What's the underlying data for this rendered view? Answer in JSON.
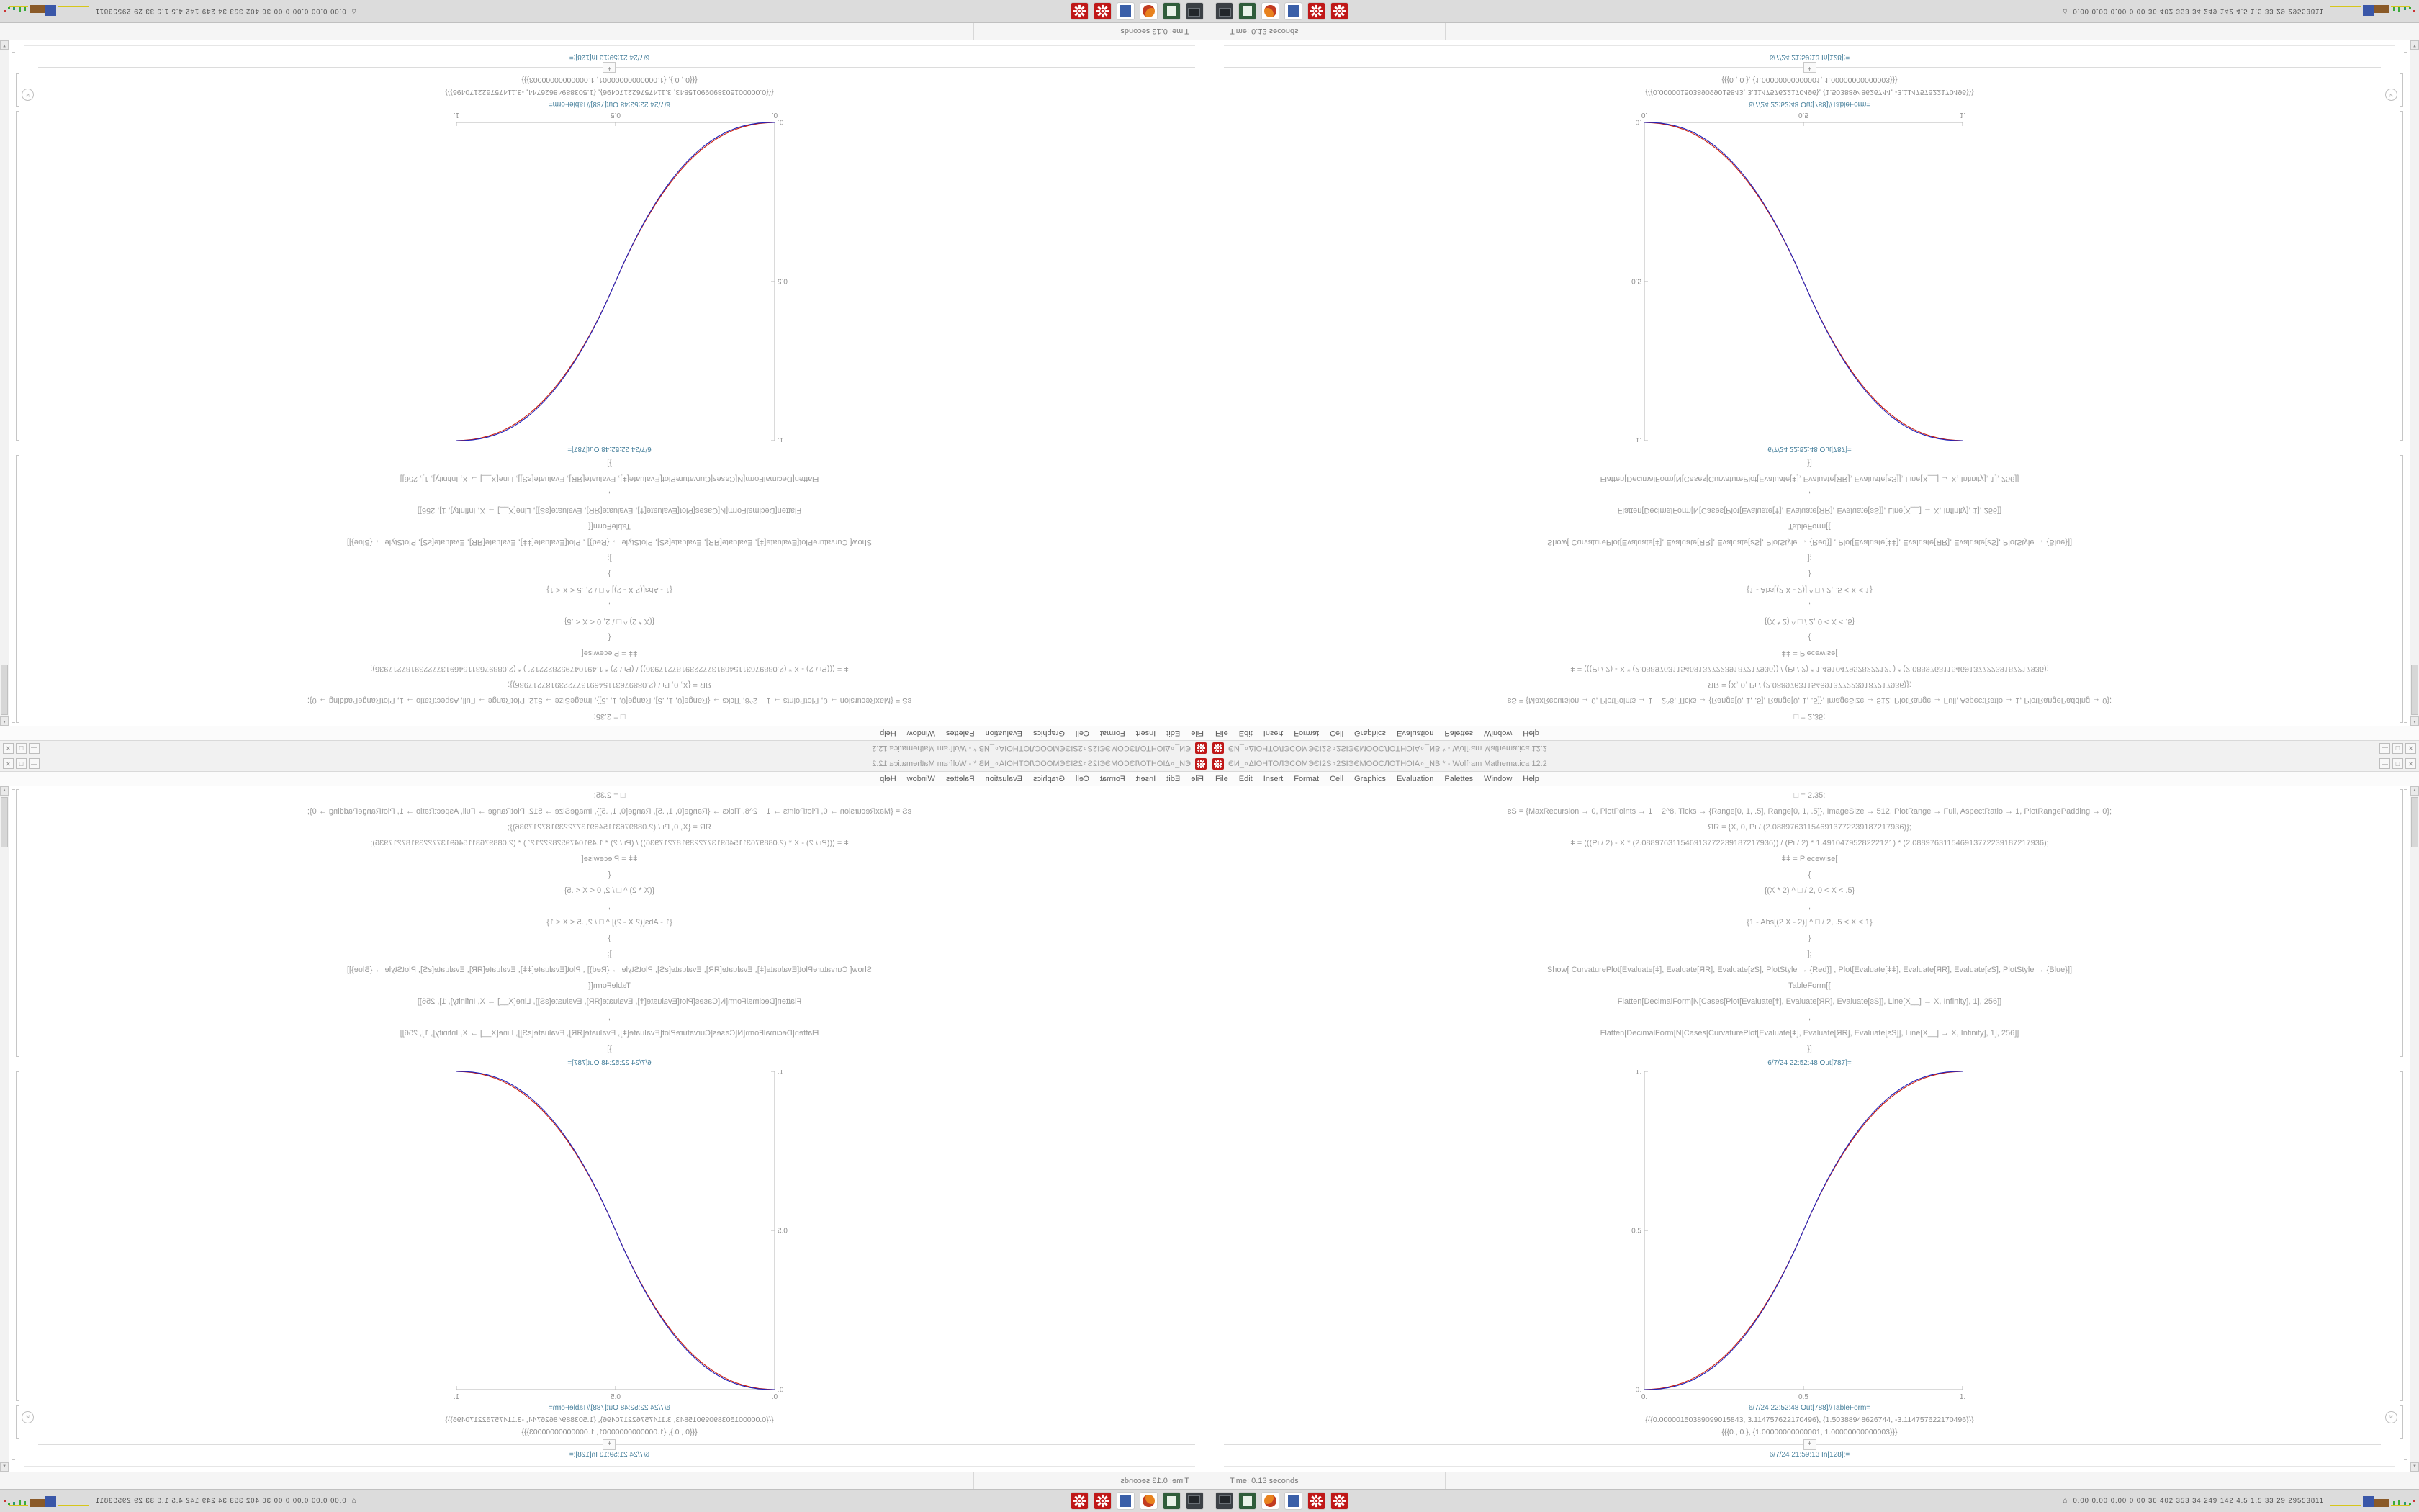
{
  "desktop": {
    "window": {
      "title": "ЄИ_∘∆IOHTOЛЭCOMЭЄI2S∘2SIЭЄMOOCЛOTHOIA∘_NB * - Wolfram Mathematica 12.2",
      "menu": [
        "File",
        "Edit",
        "Insert",
        "Format",
        "Cell",
        "Graphics",
        "Evaluation",
        "Palettes",
        "Window",
        "Help"
      ],
      "cells": {
        "code_lines": [
          "□ = 2.35;",
          "ƨS = {MaxRecursion → 0, PlotPoints → 1 + 2^8, Ticks → {Range[0, 1, .5], Range[0, 1, .5]}, ImageSize → 512, PlotRange → Full, AspectRatio → 1, PlotRangePadding → 0};",
          "ЯR = {X, 0, Pi / (2.088976311546913772239187217936)};",
          "ǂ = (((Pi / 2) - X * (2.088976311546913772239187217936)) / (Pi / 2) * 1.4910479528222121) * (2.088976311546913772239187217936);",
          "ǂǂ = Piecewise[",
          "{",
          "{(X * 2) ^ □ / 2, 0 < X < .5}",
          ",",
          "{1 - Abs[(2 X - 2)] ^ □ / 2, .5 < X < 1}",
          "}",
          "];",
          "Show[  CurvaturePlot[Evaluate[ǂ], Evaluate[ЯR], Evaluate[ƨS], PlotStyle → {Red}]  ,  Plot[Evaluate[ǂǂ], Evaluate[ЯR], Evaluate[ƨS], PlotStyle → {Blue}]]",
          "TableForm[{",
          "Flatten[DecimalForm[N[Cases[Plot[Evaluate[ǂ], Evaluate[ЯR], Evaluate[ƨS]], Line[X__] → X, Infinity], 1], 256]]",
          ",",
          "Flatten[DecimalForm[N[Cases[CurvaturePlot[Evaluate[ǂ], Evaluate[ЯR], Evaluate[ƨS]], Line[X__] → X, Infinity], 1], 256]]",
          "}]"
        ],
        "out1_label": "6/7/24 22:52:48 Out[787]=",
        "out2_label": "6/7/24 22:52:48 Out[788]//TableForm=",
        "out2_line1": "{{{0.00000150389099015843, 3.114757622170496}, {1.50388948626744, -3.114757622170496}}}",
        "out2_line2": "{{{0., 0.}, {1.00000000000001, 1.00000000000003}}}",
        "in_label": "6/7/24 21:59:13 In[128]:="
      },
      "status": {
        "time_label": "Time: 0.13 seconds"
      }
    },
    "taskbar": {
      "icons": [
        "terminal",
        "file-manager",
        "web-browser",
        "notes",
        "mathematica",
        "mathematica"
      ],
      "tray_stats": "0.00 0.00 0.00 0.00  36  402 353  34  249 142  4.5  1.5  33  29  29553811"
    }
  },
  "glyphs": {
    "minimize": "—",
    "maximize": "□",
    "close": "✕",
    "scroll_up": "▲",
    "scroll_down": "▼",
    "insert_plus": "+",
    "group_chevron": "»",
    "tray_home": "⌂"
  },
  "chart_data": {
    "type": "line",
    "title": "Out[787] graphics: piecewise power-smoothstep, CurvaturePlot (red) vs Plot (blue)",
    "xlabel": "",
    "ylabel": "",
    "xlim": [
      0,
      1
    ],
    "ylim": [
      0,
      1
    ],
    "x_ticks": [
      0,
      0.5,
      1
    ],
    "y_ticks": [
      0,
      0.5,
      1
    ],
    "x_tick_labels": [
      "0.",
      "0.5",
      "1."
    ],
    "y_tick_labels": [
      "0.",
      "0.5",
      "1."
    ],
    "grid": false,
    "legend": "none",
    "axis_color": "#b5b5b5",
    "x": [
      0,
      0.025,
      0.05,
      0.075,
      0.1,
      0.125,
      0.15,
      0.175,
      0.2,
      0.225,
      0.25,
      0.275,
      0.3,
      0.325,
      0.35,
      0.375,
      0.4,
      0.425,
      0.45,
      0.475,
      0.5,
      0.525,
      0.55,
      0.575,
      0.6,
      0.625,
      0.65,
      0.675,
      0.7,
      0.725,
      0.75,
      0.775,
      0.8,
      0.825,
      0.85,
      0.875,
      0.9,
      0.925,
      0.95,
      0.975,
      1
    ],
    "series": [
      {
        "name": "CurvaturePlot (Red)",
        "color": "#cc1f10",
        "values": [
          0,
          0.0012,
          0.0037,
          0.0081,
          0.0143,
          0.0227,
          0.0335,
          0.0469,
          0.0628,
          0.0815,
          0.1031,
          0.1276,
          0.1554,
          0.1862,
          0.2203,
          0.2578,
          0.2989,
          0.3436,
          0.3918,
          0.444,
          0.5,
          0.556,
          0.6082,
          0.6564,
          0.7011,
          0.7422,
          0.7797,
          0.8138,
          0.8446,
          0.8724,
          0.8969,
          0.9185,
          0.9372,
          0.9531,
          0.9665,
          0.9773,
          0.9857,
          0.9919,
          0.9963,
          0.9988,
          1
        ]
      },
      {
        "name": "Plot (Blue)",
        "color": "#2023bb",
        "values": [
          0,
          0.0004,
          0.0022,
          0.0058,
          0.0114,
          0.0192,
          0.0295,
          0.0424,
          0.058,
          0.0766,
          0.0981,
          0.1227,
          0.1506,
          0.1817,
          0.2163,
          0.2543,
          0.296,
          0.3413,
          0.3903,
          0.4432,
          0.5,
          0.5568,
          0.6097,
          0.6587,
          0.704,
          0.7457,
          0.7837,
          0.8183,
          0.8494,
          0.8773,
          0.9019,
          0.9234,
          0.942,
          0.9576,
          0.9705,
          0.9808,
          0.9886,
          0.9942,
          0.9978,
          0.9996,
          1
        ]
      }
    ]
  }
}
